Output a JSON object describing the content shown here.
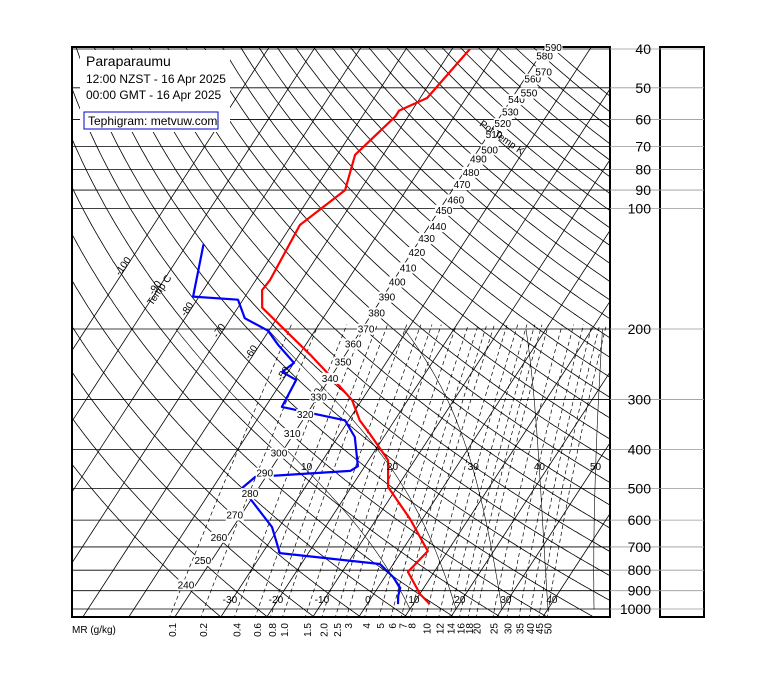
{
  "chart_data": {
    "type": "tephigram",
    "title": "Paraparaumu",
    "subtitle": [
      "12:00 NZST - 16 Apr 2025",
      "00:00 GMT - 16 Apr 2025"
    ],
    "source": "Tephigram: metvuw.com",
    "ylim": [
      1000,
      40
    ],
    "yticks": [
      40,
      50,
      60,
      70,
      80,
      90,
      100,
      200,
      300,
      400,
      500,
      600,
      700,
      800,
      900,
      1000
    ],
    "series": [
      {
        "color": "#ff0000",
        "pressure": [
          972,
          918,
          808,
          717,
          596,
          496,
          425,
          366,
          338,
          301,
          261,
          232,
          177,
          160,
          151,
          110,
          90,
          73.5,
          59,
          57,
          53,
          40
        ],
        "values": [
          13.6,
          10.1,
          4.3,
          5.7,
          -2.7,
          -12.0,
          -15.8,
          -23.4,
          -27.6,
          -32.1,
          -40.5,
          -47.6,
          -64.7,
          -67.2,
          -66.9,
          -68.2,
          -63.3,
          -66.1,
          -62.8,
          -62.8,
          -58.5,
          -56.1
        ]
      },
      {
        "color": "#0000ff",
        "pressure": [
          972,
          928,
          886,
          832,
          772,
          725,
          624,
          499,
          468,
          452,
          440,
          372,
          338,
          313,
          268,
          256,
          243,
          219,
          202,
          188,
          169,
          166,
          123
        ],
        "values": [
          6.7,
          5.6,
          4.9,
          1.8,
          -2.9,
          -26.2,
          -31.6,
          -43.6,
          -42.3,
          -22.5,
          -21.5,
          -26.3,
          -30.8,
          -46.4,
          -47.1,
          -51.3,
          -50.0,
          -56.0,
          -60.2,
          -67.0,
          -71.1,
          -81.3,
          -86.4
        ]
      }
    ],
    "isotherms": {
      "label": "Temp C",
      "values": [
        -100,
        -90,
        -80,
        -70,
        -60,
        -50,
        -40,
        -30,
        -20,
        -10,
        0,
        10,
        20,
        30,
        40
      ]
    },
    "dry_adiabats": {
      "label": "Pot Temp K",
      "values": [
        240,
        250,
        260,
        270,
        280,
        290,
        300,
        310,
        320,
        330,
        340,
        350,
        360,
        370,
        380,
        390,
        400,
        410,
        420,
        430,
        440,
        450,
        460,
        470,
        480,
        490,
        500,
        510,
        520,
        530,
        540,
        550,
        560,
        570,
        580,
        590
      ]
    },
    "mixing_ratio": {
      "label": "MR (g/kg)",
      "values": [
        0.1,
        0.2,
        0.4,
        0.6,
        0.8,
        {
          "value": 1,
          "label": "1.0"
        },
        1.5,
        {
          "value": 2,
          "label": "2.0"
        },
        2.5,
        3,
        4,
        5,
        6,
        7,
        8,
        10,
        12,
        14,
        16,
        18,
        20,
        25,
        30,
        35,
        40,
        45,
        50
      ]
    },
    "saturated_adiabats": {
      "values": [
        10,
        20,
        30,
        40,
        50
      ]
    }
  }
}
